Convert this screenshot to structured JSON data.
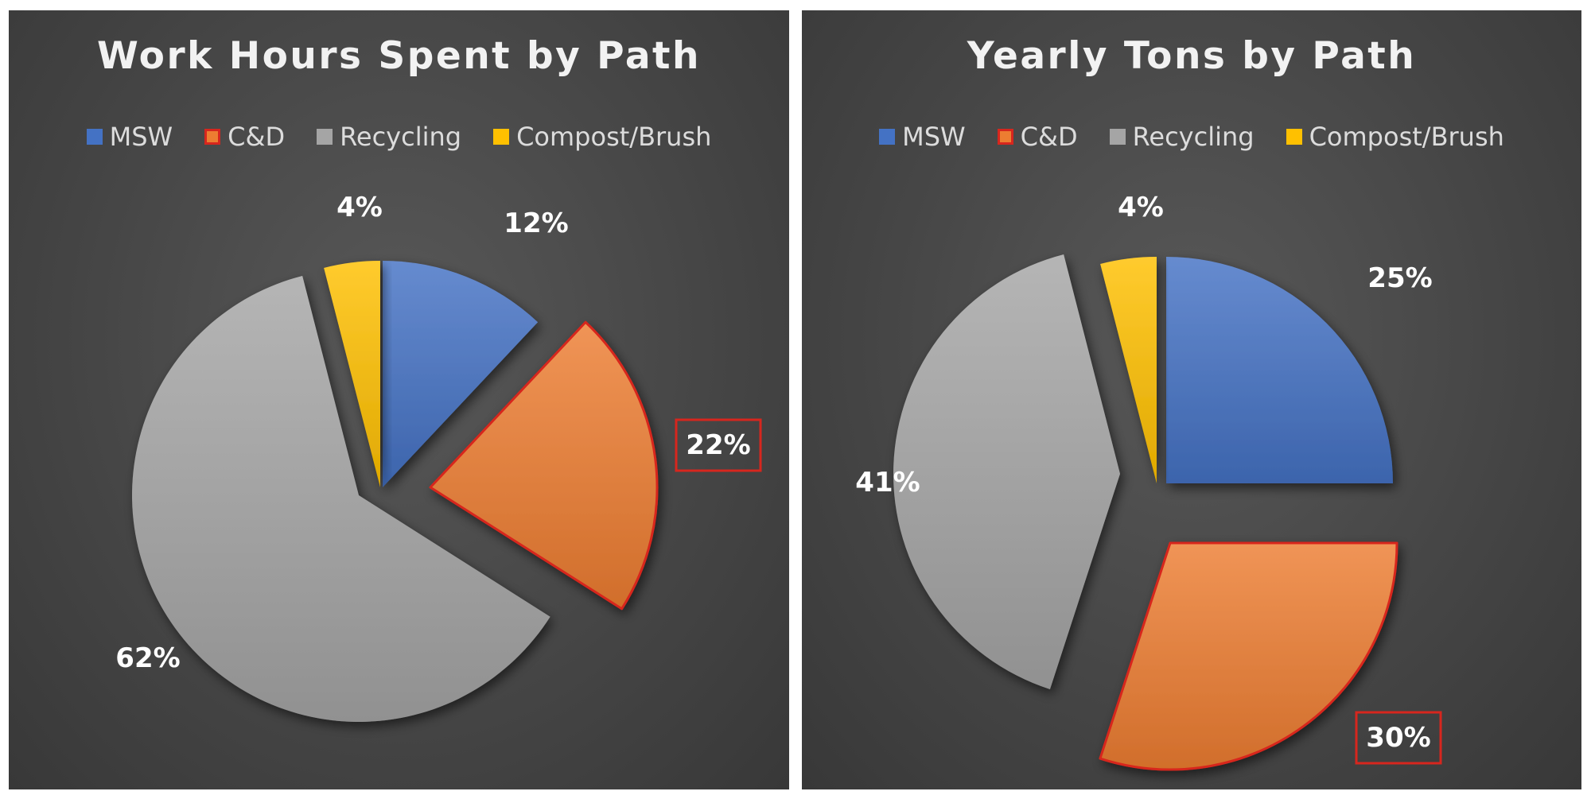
{
  "chart_data": [
    {
      "type": "pie",
      "title": "Work Hours Spent by Path",
      "categories": [
        "MSW",
        "C&D",
        "Recycling",
        "Compost/Brush"
      ],
      "values": [
        12,
        22,
        62,
        4
      ],
      "labels": [
        "12%",
        "22%",
        "62%",
        "4%"
      ],
      "colors": [
        "#4472c4",
        "#ed7d31",
        "#a5a5a5",
        "#ffc000"
      ],
      "highlighted": "C&D",
      "exploded": true,
      "legend": "top"
    },
    {
      "type": "pie",
      "title": "Yearly Tons by Path",
      "categories": [
        "MSW",
        "C&D",
        "Recycling",
        "Compost/Brush"
      ],
      "values": [
        25,
        30,
        41,
        4
      ],
      "labels": [
        "25%",
        "30%",
        "41%",
        "4%"
      ],
      "colors": [
        "#4472c4",
        "#ed7d31",
        "#a5a5a5",
        "#ffc000"
      ],
      "highlighted": "C&D",
      "exploded": true,
      "legend": "top"
    }
  ]
}
